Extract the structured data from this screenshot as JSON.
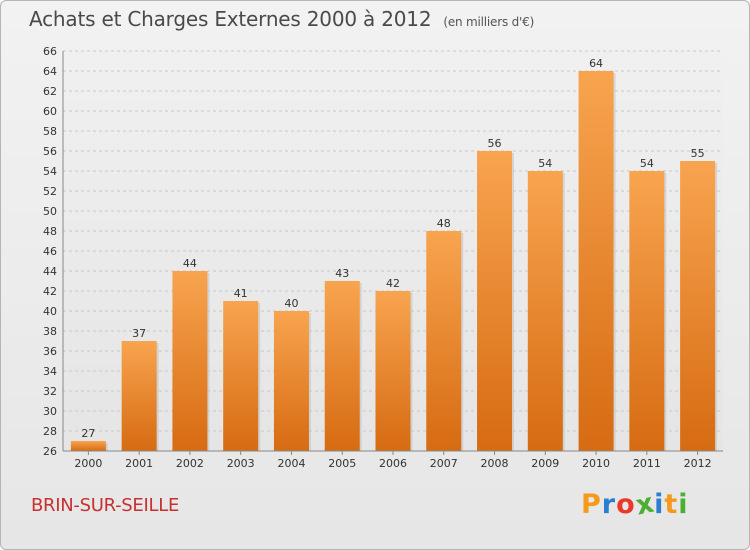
{
  "header": {
    "title": "Achats et Charges Externes 2000 à 2012",
    "unit": "(en milliers d'€)"
  },
  "footer": {
    "place": "BRIN-SUR-SEILLE",
    "logo": {
      "letters": [
        "P",
        "r",
        "o",
        "x",
        "i",
        "t",
        "i"
      ],
      "colors": [
        "#f59a1c",
        "#2a7fd0",
        "#e8392a",
        "#4cae32",
        "#2a7fd0",
        "#f59a1c",
        "#4cae32"
      ]
    }
  },
  "chart_data": {
    "type": "bar",
    "categories": [
      "2000",
      "2001",
      "2002",
      "2003",
      "2004",
      "2005",
      "2006",
      "2007",
      "2008",
      "2009",
      "2010",
      "2011",
      "2012"
    ],
    "values": [
      27,
      37,
      44,
      41,
      40,
      43,
      42,
      48,
      56,
      54,
      64,
      54,
      55
    ],
    "ylim": [
      26,
      66
    ],
    "ytick_step": 2,
    "grid": true,
    "bar_color": "#f0892a"
  }
}
